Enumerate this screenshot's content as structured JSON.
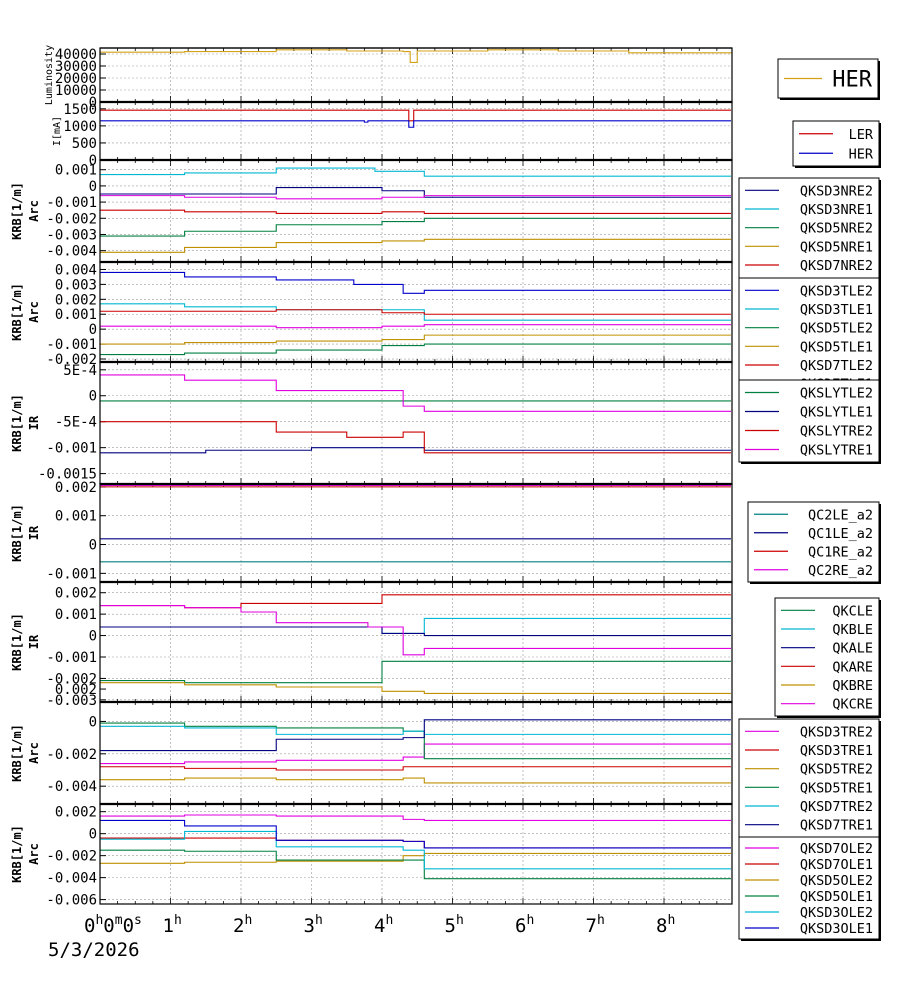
{
  "date_label": "5/3/2026",
  "x_ticks": [
    {
      "hour": 0,
      "label": "0",
      "sup": "h",
      "extra": "0",
      "extra_sup": "m",
      "extra2": "0",
      "extra2_sup": "s"
    },
    {
      "hour": 1,
      "label": "1",
      "sup": "h"
    },
    {
      "hour": 2,
      "label": "2",
      "sup": "h"
    },
    {
      "hour": 3,
      "label": "3",
      "sup": "h"
    },
    {
      "hour": 4,
      "label": "4",
      "sup": "h"
    },
    {
      "hour": 5,
      "label": "5",
      "sup": "h"
    },
    {
      "hour": 6,
      "label": "6",
      "sup": "h"
    },
    {
      "hour": 7,
      "label": "7",
      "sup": "h"
    },
    {
      "hour": 8,
      "label": "8",
      "sup": "h"
    }
  ],
  "colors": {
    "gold": "#d4a017",
    "red": "#cc0000",
    "blue": "#0000cc",
    "darkblue": "#000080",
    "cyan": "#00b8d4",
    "green": "#008040",
    "olive": "#c09000",
    "magenta": "#e000e0"
  },
  "chart_data": [
    {
      "type": "line",
      "ylabel": "Luminosity",
      "xlim": [
        0,
        8.95
      ],
      "ylim": [
        0,
        45000
      ],
      "ytick_labels": [
        "40000",
        "30000",
        "20000",
        "10000",
        "0"
      ],
      "yticks": [
        40000,
        30000,
        20000,
        10000,
        0
      ],
      "legend": "right",
      "series": [
        {
          "name": "HER",
          "color": "#d4a017",
          "x": [
            0,
            1.2,
            2.5,
            3.5,
            4.3,
            4.4,
            4.5,
            5.5,
            6.5,
            7.5,
            8.95
          ],
          "y": [
            41500,
            42000,
            43500,
            42500,
            42000,
            33000,
            42500,
            43500,
            42500,
            41000,
            41500
          ]
        }
      ]
    },
    {
      "type": "line",
      "ylabel": "I[mA]",
      "xlim": [
        0,
        8.95
      ],
      "ylim": [
        0,
        1700
      ],
      "ytick_labels": [
        "1500",
        "1000",
        "500",
        "0"
      ],
      "yticks": [
        1500,
        1000,
        500,
        0
      ],
      "legend": "right",
      "series": [
        {
          "name": "LER",
          "color": "#cc0000",
          "x": [
            0,
            4.3,
            4.38,
            4.45,
            8.95
          ],
          "y": [
            1460,
            1460,
            1150,
            1460,
            1460
          ]
        },
        {
          "name": "HER",
          "color": "#0000cc",
          "x": [
            0,
            3.7,
            3.75,
            3.8,
            4.3,
            4.38,
            4.45,
            8.95
          ],
          "y": [
            1150,
            1150,
            1110,
            1150,
            1150,
            960,
            1150,
            1150
          ]
        }
      ]
    },
    {
      "type": "line",
      "ylabel": "KRB[1/m]",
      "ylabel2": "Arc",
      "xlim": [
        0,
        8.95
      ],
      "ylim": [
        -0.0047,
        0.0016
      ],
      "ytick_labels": [
        "0.001",
        "0",
        "-0.001",
        "-0.002",
        "-0.003",
        "-0.004"
      ],
      "yticks": [
        0.001,
        0,
        -0.001,
        -0.002,
        -0.003,
        -0.004
      ],
      "legend": "right",
      "series": [
        {
          "name": "QKSD3NRE2",
          "color": "#000080",
          "x": [
            0,
            1.2,
            2.5,
            4.0,
            4.6,
            8.95
          ],
          "y": [
            -0.0005,
            -0.0005,
            -0.0001,
            -0.0003,
            -0.0007,
            -0.0007
          ]
        },
        {
          "name": "QKSD3NRE1",
          "color": "#00b8d4",
          "x": [
            0,
            1.2,
            2.5,
            3.9,
            4.6,
            8.95
          ],
          "y": [
            0.0007,
            0.0008,
            0.0011,
            0.0009,
            0.0006,
            0.0006
          ]
        },
        {
          "name": "QKSD5NRE2",
          "color": "#008040",
          "x": [
            0,
            1.2,
            2.5,
            4.0,
            4.6,
            8.95
          ],
          "y": [
            -0.0031,
            -0.0028,
            -0.0024,
            -0.0022,
            -0.002,
            -0.002
          ]
        },
        {
          "name": "QKSD5NRE1",
          "color": "#c09000",
          "x": [
            0,
            1.2,
            2.5,
            4.0,
            4.6,
            8.95
          ],
          "y": [
            -0.0041,
            -0.0038,
            -0.0035,
            -0.0034,
            -0.0033,
            -0.0033
          ]
        },
        {
          "name": "QKSD7NRE2",
          "color": "#cc0000",
          "x": [
            0,
            1.2,
            2.5,
            4.0,
            4.6,
            8.95
          ],
          "y": [
            -0.0015,
            -0.0016,
            -0.0017,
            -0.0016,
            -0.0017,
            -0.0017
          ]
        },
        {
          "name": "QKSD7NRE1",
          "color": "#e000e0",
          "x": [
            0,
            1.2,
            2.5,
            4.0,
            4.6,
            8.95
          ],
          "y": [
            -0.0006,
            -0.0007,
            -0.0008,
            -0.0007,
            -0.0006,
            -0.0006
          ]
        }
      ]
    },
    {
      "type": "line",
      "ylabel": "KRB[1/m]",
      "ylabel2": "Arc",
      "xlim": [
        0,
        8.95
      ],
      "ylim": [
        -0.0022,
        0.0045
      ],
      "ytick_labels": [
        "0.004",
        "0.003",
        "0.002",
        "0.001",
        "0",
        "-0.001",
        "-0.002"
      ],
      "yticks": [
        0.004,
        0.003,
        0.002,
        0.001,
        0,
        -0.001,
        -0.002
      ],
      "legend": "right",
      "series": [
        {
          "name": "QKSD3TLE2",
          "color": "#0000cc",
          "x": [
            0,
            1.2,
            2.5,
            3.6,
            4.3,
            4.6,
            8.95
          ],
          "y": [
            0.0038,
            0.0035,
            0.0033,
            0.003,
            0.0024,
            0.0026,
            0.0026
          ]
        },
        {
          "name": "QKSD3TLE1",
          "color": "#00b8d4",
          "x": [
            0,
            1.2,
            2.5,
            4.6,
            8.95
          ],
          "y": [
            0.0017,
            0.0015,
            0.0013,
            0.0006,
            0.0006
          ]
        },
        {
          "name": "QKSD5TLE2",
          "color": "#008040",
          "x": [
            0,
            1.2,
            2.5,
            4.0,
            4.6,
            8.95
          ],
          "y": [
            -0.0017,
            -0.0016,
            -0.0014,
            -0.0011,
            -0.001,
            -0.001
          ]
        },
        {
          "name": "QKSD5TLE1",
          "color": "#c09000",
          "x": [
            0,
            1.2,
            2.5,
            4.0,
            4.6,
            8.95
          ],
          "y": [
            -0.001,
            -0.0009,
            -0.0008,
            -0.0007,
            -0.0004,
            -0.0004
          ]
        },
        {
          "name": "QKSD7TLE2",
          "color": "#cc0000",
          "x": [
            0,
            1.2,
            2.5,
            4.0,
            4.6,
            8.95
          ],
          "y": [
            0.0012,
            0.0012,
            0.0013,
            0.0011,
            0.001,
            0.001
          ]
        },
        {
          "name": "QKSD7TLE1",
          "color": "#e000e0",
          "x": [
            0,
            1.2,
            2.5,
            4.0,
            4.6,
            8.95
          ],
          "y": [
            0.0002,
            0.0002,
            0.0001,
            0.0002,
            0.0003,
            0.0003
          ]
        }
      ]
    },
    {
      "type": "line",
      "ylabel": "KRB[1/m]",
      "ylabel2": "IR",
      "xlim": [
        0,
        8.95
      ],
      "ylim": [
        -0.0017,
        0.00065
      ],
      "ytick_labels": [
        "5E-4",
        "0",
        "-5E-4",
        "-0.001",
        "-0.0015"
      ],
      "yticks": [
        0.0005,
        0,
        -0.0005,
        -0.001,
        -0.0015
      ],
      "legend": "right",
      "series": [
        {
          "name": "QKSLYTLE2",
          "color": "#008040",
          "x": [
            0,
            1.5,
            3.0,
            4.6,
            8.95
          ],
          "y": [
            -0.0001,
            -0.0001,
            -0.0001,
            -0.0001,
            -0.0001
          ]
        },
        {
          "name": "QKSLYTLE1",
          "color": "#000080",
          "x": [
            0,
            1.5,
            3.0,
            4.2,
            4.6,
            8.95
          ],
          "y": [
            -0.0011,
            -0.00105,
            -0.001,
            -0.001,
            -0.00105,
            -0.00105
          ]
        },
        {
          "name": "QKSLYTRE2",
          "color": "#cc0000",
          "x": [
            0,
            1.2,
            2.5,
            3.5,
            4.3,
            4.6,
            8.95
          ],
          "y": [
            -0.0005,
            -0.0005,
            -0.0007,
            -0.0008,
            -0.0007,
            -0.0011,
            -0.0011
          ]
        },
        {
          "name": "QKSLYTRE1",
          "color": "#e000e0",
          "x": [
            0,
            1.2,
            2.5,
            3.5,
            4.3,
            4.6,
            8.95
          ],
          "y": [
            0.0004,
            0.0003,
            0.0001,
            0.0001,
            -0.0002,
            -0.0003,
            -0.0003
          ]
        }
      ]
    },
    {
      "type": "line",
      "ylabel": "KRB[1/m]",
      "ylabel2": "IR",
      "xlim": [
        0,
        8.95
      ],
      "ylim": [
        -0.0013,
        0.0021
      ],
      "ytick_labels": [
        "0.002",
        "0.001",
        "0",
        "-0.001"
      ],
      "yticks": [
        0.002,
        0.001,
        0,
        -0.001
      ],
      "legend": "right",
      "series": [
        {
          "name": "QC2LE_a2",
          "color": "#008080",
          "x": [
            0,
            8.95
          ],
          "y": [
            -0.0006,
            -0.0006
          ]
        },
        {
          "name": "QC1LE_a2",
          "color": "#000080",
          "x": [
            0,
            8.95
          ],
          "y": [
            0.0002,
            0.0002
          ]
        },
        {
          "name": "QC1RE_a2",
          "color": "#cc0000",
          "x": [
            0,
            8.95
          ],
          "y": [
            0.002,
            0.002
          ]
        },
        {
          "name": "QC2RE_a2",
          "color": "#e000e0",
          "x": [
            0,
            8.95
          ],
          "y": [
            0.00205,
            0.00205
          ]
        }
      ]
    },
    {
      "type": "line",
      "ylabel": "KRB[1/m]",
      "ylabel2": "IR",
      "xlim": [
        0,
        8.95
      ],
      "ylim": [
        -0.0031,
        0.0025
      ],
      "ytick_labels": [
        "0.002",
        "0.001",
        "0",
        "-0.001",
        "-0.002",
        "-0.003"
      ],
      "yticks": [
        0.002,
        0.001,
        0,
        -0.001,
        -0.002,
        -0.003
      ],
      "legend": "right",
      "series": [
        {
          "name": "QKCLE",
          "color": "#008040",
          "x": [
            0,
            1.2,
            2.5,
            3.8,
            4.0,
            4.6,
            8.95
          ],
          "y": [
            -0.0021,
            -0.0022,
            -0.0022,
            -0.0022,
            -0.0012,
            -0.0012,
            -0.0012
          ]
        },
        {
          "name": "QKBLE",
          "color": "#00b8d4",
          "x": [
            0,
            1.2,
            2.5,
            3.8,
            4.0,
            4.6,
            8.95
          ],
          "y": [
            0.0004,
            0.0004,
            0.0004,
            0.0004,
            0.0001,
            0.0008,
            0.0008
          ]
        },
        {
          "name": "QKALE",
          "color": "#000080",
          "x": [
            0,
            1.2,
            2.5,
            3.8,
            4.0,
            4.6,
            8.95
          ],
          "y": [
            0.0004,
            0.0004,
            0.0004,
            0.0004,
            0.0001,
            0.0,
            0.0
          ]
        },
        {
          "name": "QKARE",
          "color": "#cc0000",
          "x": [
            0,
            1.2,
            2.0,
            3.8,
            4.0,
            4.6,
            8.95
          ],
          "y": [
            0.0014,
            0.0013,
            0.0015,
            0.0015,
            0.0019,
            0.0019,
            0.0019
          ]
        },
        {
          "name": "QKBRE",
          "color": "#c09000",
          "x": [
            0,
            1.2,
            2.5,
            4.0,
            4.6,
            8.95
          ],
          "y": [
            -0.0022,
            -0.0023,
            -0.0024,
            -0.0026,
            -0.0027,
            -0.0027
          ]
        },
        {
          "name": "QKCRE",
          "color": "#e000e0",
          "x": [
            0,
            1.2,
            2.0,
            2.5,
            3.8,
            4.3,
            4.6,
            8.95
          ],
          "y": [
            0.0014,
            0.0013,
            0.0011,
            0.0006,
            0.0004,
            -0.0009,
            -0.0006,
            -0.0006
          ]
        }
      ]
    },
    {
      "type": "line",
      "ylabel": "KRB[1/m]",
      "ylabel2": "Arc",
      "xlim": [
        0,
        8.95
      ],
      "ylim": [
        -0.0051,
        0.0012
      ],
      "ytick_labels": [
        "0.002",
        "0",
        "-0.002",
        "-0.004"
      ],
      "yticks": [
        0.002,
        0,
        -0.002,
        -0.004
      ],
      "legend": "right",
      "series": [
        {
          "name": "QKSD3TRE2",
          "color": "#e000e0",
          "x": [
            0,
            1.2,
            2.5,
            4.3,
            4.6,
            8.95
          ],
          "y": [
            -0.0026,
            -0.0025,
            -0.0024,
            -0.0022,
            -0.0014,
            -0.0014
          ]
        },
        {
          "name": "QKSD3TRE1",
          "color": "#cc0000",
          "x": [
            0,
            1.2,
            2.5,
            4.3,
            4.6,
            8.95
          ],
          "y": [
            -0.0028,
            -0.0029,
            -0.003,
            -0.0028,
            -0.0028,
            -0.0028
          ]
        },
        {
          "name": "QKSD5TRE2",
          "color": "#c09000",
          "x": [
            0,
            1.2,
            2.5,
            4.3,
            4.6,
            8.95
          ],
          "y": [
            -0.0036,
            -0.0035,
            -0.0036,
            -0.0035,
            -0.0038,
            -0.0038
          ]
        },
        {
          "name": "QKSD5TRE1",
          "color": "#008040",
          "x": [
            0,
            1.2,
            2.5,
            4.3,
            4.6,
            8.95
          ],
          "y": [
            -0.0001,
            -0.0003,
            -0.0004,
            -0.0006,
            -0.0023,
            -0.0023
          ]
        },
        {
          "name": "QKSD7TRE2",
          "color": "#00b8d4",
          "x": [
            0,
            1.2,
            2.5,
            4.3,
            4.6,
            8.95
          ],
          "y": [
            -0.0003,
            -0.0004,
            -0.0008,
            -0.0006,
            -0.0008,
            -0.0008
          ]
        },
        {
          "name": "QKSD7TRE1",
          "color": "#000080",
          "x": [
            0,
            1.2,
            2.5,
            4.3,
            4.6,
            8.95
          ],
          "y": [
            -0.0018,
            -0.0018,
            -0.0011,
            -0.001,
            0.0001,
            0.0001
          ]
        }
      ]
    },
    {
      "type": "line",
      "ylabel": "KRB[1/m]",
      "ylabel2": "Arc",
      "xlim": [
        0,
        8.95
      ],
      "ylim": [
        -0.0064,
        0.0027
      ],
      "ytick_labels": [
        "0.002",
        "0",
        "-0.002",
        "-0.004",
        "-0.006"
      ],
      "yticks": [
        0.002,
        0,
        -0.002,
        -0.004,
        -0.006
      ],
      "legend": "right",
      "series": [
        {
          "name": "QKSD7OLE2",
          "color": "#e000e0",
          "x": [
            0,
            1.2,
            2.5,
            4.3,
            4.6,
            8.95
          ],
          "y": [
            0.0016,
            0.0017,
            0.0016,
            0.0013,
            0.0012,
            0.0012
          ]
        },
        {
          "name": "QKSD7OLE1",
          "color": "#cc0000",
          "x": [
            0,
            1.2,
            2.5,
            4.3,
            4.6,
            8.95
          ],
          "y": [
            -0.0004,
            -0.0004,
            -0.0006,
            -0.0007,
            -0.0013,
            -0.0013
          ]
        },
        {
          "name": "QKSD5OLE2",
          "color": "#c09000",
          "x": [
            0,
            1.2,
            2.5,
            4.3,
            4.6,
            8.95
          ],
          "y": [
            -0.0027,
            -0.0026,
            -0.0025,
            -0.002,
            -0.0018,
            -0.0018
          ]
        },
        {
          "name": "QKSD5OLE1",
          "color": "#008040",
          "x": [
            0,
            1.2,
            2.5,
            4.3,
            4.6,
            8.95
          ],
          "y": [
            -0.0015,
            -0.0016,
            -0.0024,
            -0.0024,
            -0.0041,
            -0.0041
          ]
        },
        {
          "name": "QKSD3OLE2",
          "color": "#00b8d4",
          "x": [
            0,
            1.2,
            2.5,
            4.3,
            4.6,
            8.95
          ],
          "y": [
            -0.0005,
            0.0002,
            -0.0012,
            -0.0015,
            -0.0032,
            -0.0032
          ]
        },
        {
          "name": "QKSD3OLE1",
          "color": "#0000cc",
          "x": [
            0,
            1.2,
            2.5,
            4.3,
            4.6,
            8.95
          ],
          "y": [
            0.0012,
            0.0007,
            -0.0006,
            -0.0007,
            -0.0013,
            -0.0013
          ]
        }
      ]
    }
  ]
}
